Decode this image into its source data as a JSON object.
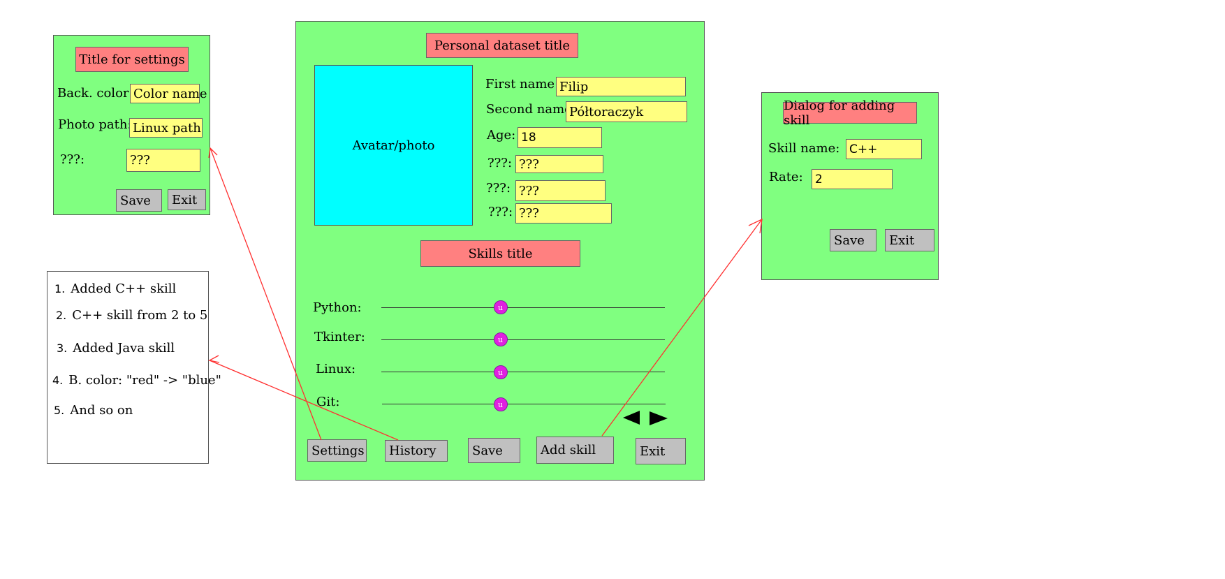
{
  "colors": {
    "panel": "#80ff80",
    "title": "#ff8080",
    "field": "#ffff80",
    "avatar": "#00ffff",
    "button": "#c0c0c0",
    "knob": "#e020e0",
    "arrow": "#ff3030"
  },
  "settings": {
    "title": "Title for settings",
    "back_color_label": "Back. color:",
    "back_color_value": "Color name",
    "photo_path_label": "Photo path:",
    "photo_path_value": "Linux path",
    "unknown_label": "???:",
    "unknown_value": "???",
    "save_label": "Save",
    "exit_label": "Exit"
  },
  "history_list": {
    "items": [
      {
        "num": "1.",
        "text": "Added C++ skill"
      },
      {
        "num": "2.",
        "text": "C++ skill from 2 to 5"
      },
      {
        "num": "3.",
        "text": "Added Java skill"
      },
      {
        "num": "4.",
        "text": "B. color: \"red\" -> \"blue\""
      },
      {
        "num": "5.",
        "text": "And so on"
      }
    ]
  },
  "main": {
    "title": "Personal dataset title",
    "avatar_label": "Avatar/photo",
    "first_name_label": "First name:",
    "first_name_value": "Filip",
    "second_name_label": "Second name:",
    "second_name_value": "Półtoraczyk",
    "age_label": "Age:",
    "age_value": "18",
    "extra_fields": [
      {
        "label": "???:",
        "value": "???"
      },
      {
        "label": "???:",
        "value": "???"
      },
      {
        "label": "???:",
        "value": "???"
      }
    ],
    "skills_title": "Skills title",
    "skills": [
      {
        "name": "Python:",
        "level": 0.42
      },
      {
        "name": "Tkinter:",
        "level": 0.42
      },
      {
        "name": "Linux:",
        "level": 0.42
      },
      {
        "name": "Git:",
        "level": 0.42
      }
    ],
    "prev_icon": "triangle-left-icon",
    "next_icon": "triangle-right-icon",
    "settings_label": "Settings",
    "history_label": "History",
    "save_label": "Save",
    "add_skill_label": "Add skill",
    "exit_label": "Exit"
  },
  "add_skill": {
    "title": "Dialog for adding skill",
    "skill_name_label": "Skill name:",
    "skill_name_value": "C++",
    "rate_label": "Rate:",
    "rate_value": "2",
    "save_label": "Save",
    "exit_label": "Exit"
  }
}
